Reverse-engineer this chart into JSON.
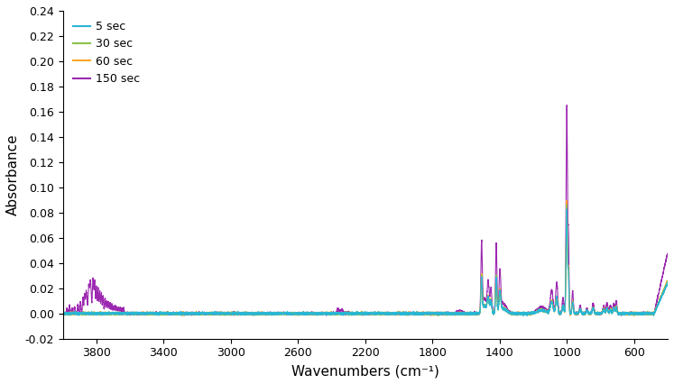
{
  "title": "",
  "xlabel": "Wavenumbers (cm⁻¹)",
  "ylabel": "Absorbance",
  "xlim": [
    4000,
    399
  ],
  "ylim": [
    -0.02,
    0.24
  ],
  "yticks": [
    -0.02,
    0.0,
    0.02,
    0.04,
    0.06,
    0.08,
    0.1,
    0.12,
    0.14,
    0.16,
    0.18,
    0.2,
    0.22,
    0.24
  ],
  "xticks": [
    3800,
    3400,
    3000,
    2600,
    2200,
    1800,
    1400,
    1000,
    600
  ],
  "colors": {
    "5sec": "#29b6d4",
    "30sec": "#8bc34a",
    "60sec": "#ffa726",
    "150sec": "#9c27b0"
  },
  "legend": [
    "5 sec",
    "30 sec",
    "60 sec",
    "150 sec"
  ],
  "linewidth": 0.8
}
